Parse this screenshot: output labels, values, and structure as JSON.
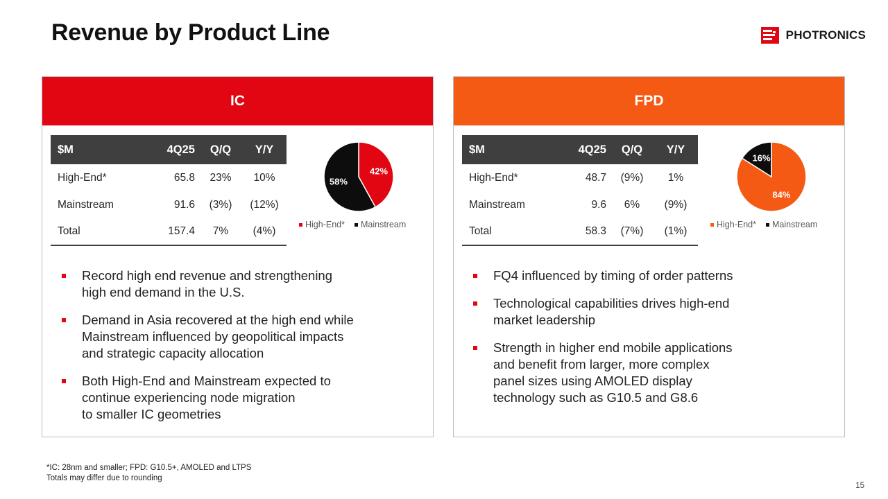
{
  "slide": {
    "title": "Revenue by Product Line",
    "page_number": "15",
    "footnote_line1": "*IC: 28nm and smaller; FPD: G10.5+, AMOLED and LTPS",
    "footnote_line2": "Totals may differ due to rounding"
  },
  "logo": {
    "text": "PHOTRONICS",
    "icon": "photronics-logo-icon",
    "color": "#e20612"
  },
  "colors": {
    "ic_accent": "#e20612",
    "fpd_accent": "#f55a14",
    "table_header": "#3f3f3f",
    "mainstream": "#0d0d0d"
  },
  "ic": {
    "header": "IC",
    "table": {
      "columns": [
        "$M",
        "4Q25",
        "Q/Q",
        "Y/Y"
      ],
      "rows": [
        [
          "High-End*",
          "65.8",
          "23%",
          "10%"
        ],
        [
          "Mainstream",
          "91.6",
          "(3%)",
          "(12%)"
        ],
        [
          "Total",
          "157.4",
          "7%",
          "(4%)"
        ]
      ]
    },
    "pie": {
      "high_end_label": "42%",
      "mainstream_label": "58%"
    },
    "legend": [
      "High-End*",
      "Mainstream"
    ],
    "bullets": [
      "Record high end revenue and strengthening\nhigh end demand in the U.S.",
      "Demand in Asia recovered at the high end while\nMainstream influenced by geopolitical impacts\nand strategic capacity allocation",
      "Both High-End and Mainstream expected to\ncontinue experiencing node migration\nto smaller IC geometries"
    ]
  },
  "fpd": {
    "header": "FPD",
    "table": {
      "columns": [
        "$M",
        "4Q25",
        "Q/Q",
        "Y/Y"
      ],
      "rows": [
        [
          "High-End*",
          "48.7",
          "(9%)",
          "1%"
        ],
        [
          "Mainstream",
          "9.6",
          "6%",
          "(9%)"
        ],
        [
          "Total",
          "58.3",
          "(7%)",
          "(1%)"
        ]
      ]
    },
    "pie": {
      "high_end_label": "84%",
      "mainstream_label": "16%"
    },
    "legend": [
      "High-End*",
      "Mainstream"
    ],
    "bullets": [
      "FQ4 influenced by timing of order patterns",
      "Technological capabilities drives high-end\nmarket leadership",
      "Strength in higher end mobile applications\nand benefit from larger, more complex\npanel sizes using AMOLED display\ntechnology such as G10.5 and G8.6"
    ]
  },
  "chart_data": [
    {
      "type": "pie",
      "categories": [
        "High-End*",
        "Mainstream"
      ],
      "values": [
        42,
        58
      ],
      "title": "",
      "legend": "bottom",
      "colors": [
        "#e20612",
        "#0d0d0d"
      ]
    },
    {
      "type": "pie",
      "categories": [
        "High-End*",
        "Mainstream"
      ],
      "values": [
        84,
        16
      ],
      "title": "",
      "legend": "bottom",
      "colors": [
        "#f55a14",
        "#0d0d0d"
      ]
    }
  ]
}
